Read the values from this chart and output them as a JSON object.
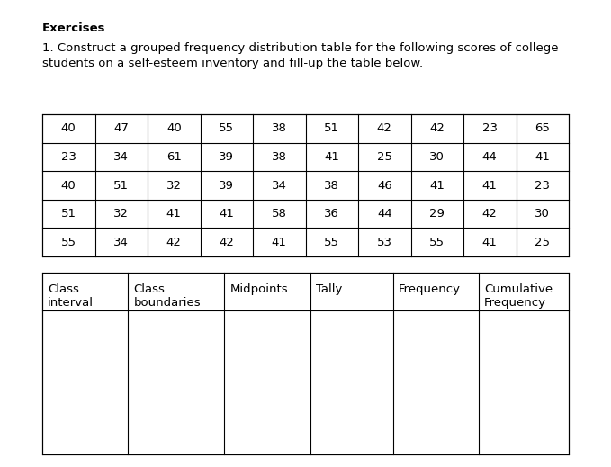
{
  "title_bold": "Exercises",
  "para_line1": "1. Construct a grouped frequency distribution table for the following scores of college",
  "para_line2": "students on a self-esteem inventory and fill-up the table below.",
  "scores_table": [
    [
      40,
      47,
      40,
      55,
      38,
      51,
      42,
      42,
      23,
      65
    ],
    [
      23,
      34,
      61,
      39,
      38,
      41,
      25,
      30,
      44,
      41
    ],
    [
      40,
      51,
      32,
      39,
      34,
      38,
      46,
      41,
      41,
      23
    ],
    [
      51,
      32,
      41,
      41,
      58,
      36,
      44,
      29,
      42,
      30
    ],
    [
      55,
      34,
      42,
      42,
      41,
      55,
      53,
      55,
      41,
      25
    ]
  ],
  "freq_headers_r1": [
    "Class",
    "Class",
    "Midpoints",
    "Tally",
    "Frequency",
    "Cumulative"
  ],
  "freq_headers_r2": [
    "interval",
    "boundaries",
    "",
    "",
    "",
    "Frequency"
  ],
  "bg_color": "#ffffff",
  "text_color": "#000000",
  "font_size": 9.5,
  "title_font_size": 9.5
}
